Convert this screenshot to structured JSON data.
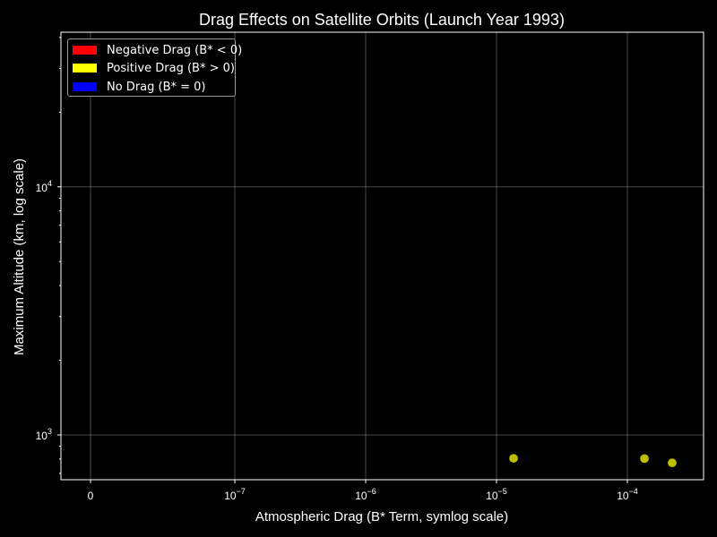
{
  "chart_data": {
    "type": "scatter",
    "title": "Drag Effects on Satellite Orbits (Launch Year 1993)",
    "xlabel": "Atmospheric Drag (B* Term, symlog scale)",
    "ylabel": "Maximum Altitude (km, log scale)",
    "x_scale": "symlog",
    "y_scale": "log",
    "xlim_decades": [
      -7.7,
      -3.4
    ],
    "ylim": [
      660,
      42000
    ],
    "x_ticks": [
      {
        "label": "0",
        "exp": null
      },
      {
        "label": "10",
        "exp": "−7"
      },
      {
        "label": "10",
        "exp": "−6"
      },
      {
        "label": "10",
        "exp": "−5"
      },
      {
        "label": "10",
        "exp": "−4"
      }
    ],
    "y_ticks": [
      {
        "label": "10",
        "exp": "3",
        "value": 1000
      },
      {
        "label": "10",
        "exp": "4",
        "value": 10000
      }
    ],
    "grid": true,
    "legend_position": "top-left",
    "series": [
      {
        "name": "Negative Drag (B* < 0)",
        "color": "#ff0000",
        "points": []
      },
      {
        "name": "Positive Drag (B* > 0)",
        "color": "#ffff00",
        "points": [
          {
            "x": 1.35e-05,
            "y": 805
          },
          {
            "x": 0.000135,
            "y": 803
          },
          {
            "x": 0.00022,
            "y": 772
          }
        ]
      },
      {
        "name": "No Drag (B* = 0)",
        "color": "#0000ff",
        "points": []
      }
    ]
  }
}
